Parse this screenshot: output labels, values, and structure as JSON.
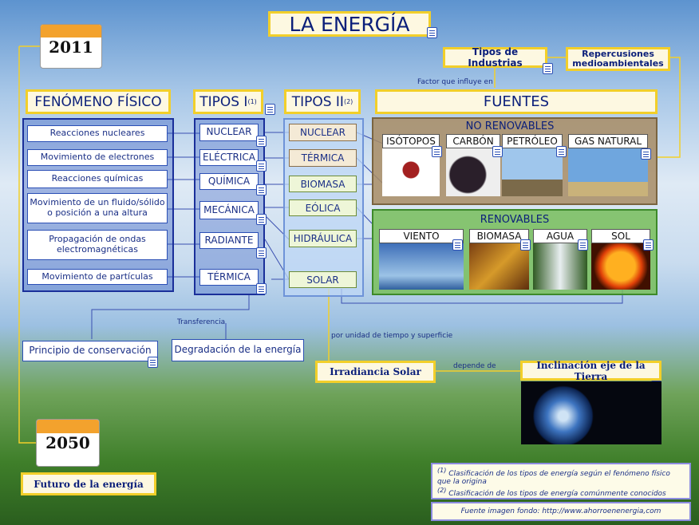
{
  "title": "LA ENERGÍA",
  "calendars": {
    "top": "2011",
    "bottom": "2050"
  },
  "future_label": "Futuro de la energía",
  "industries": "Tipos de Industrias",
  "repercussions": "Repercusiones medioambientales",
  "factor_label": "Factor que influye en",
  "headers": {
    "fenomeno": "FENÓMENO FÍSICO",
    "tipos1": "TIPOS I",
    "tipos1_sup": "(1)",
    "tipos2": "TIPOS II",
    "tipos2_sup": "(2)",
    "fuentes": "FUENTES"
  },
  "fenomenos": [
    "Reacciones nucleares",
    "Movimiento de electrones",
    "Reacciones químicas",
    "Movimiento de un fluido/sólido o posición a una altura",
    "Propagación de ondas electromagnéticas",
    "Movimiento de partículas"
  ],
  "tipos1": [
    "NUCLEAR",
    "ELÉCTRICA",
    "QUÍMICA",
    "MECÁNICA",
    "RADIANTE",
    "TÉRMICA"
  ],
  "tipos2": [
    "NUCLEAR",
    "TÉRMICA",
    "BIOMASA",
    "EÓLICA",
    "HIDRÁULICA",
    "SOLAR"
  ],
  "no_renovables": {
    "title": "NO RENOVABLES",
    "items": [
      "ISÓTOPOS",
      "CARBÓN",
      "PETRÓLEO",
      "GAS NATURAL"
    ]
  },
  "renovables": {
    "title": "RENOVABLES",
    "items": [
      "VIENTO",
      "BIOMASA",
      "AGUA",
      "SOL"
    ]
  },
  "transfer_label": "Transferencia",
  "conservacion": "Principio de conservación",
  "degradacion": "Degradación de la energía",
  "per_unit_label": "por unidad de tiempo y superficie",
  "irradiancia": "Irradiancia Solar",
  "depende_label": "depende de",
  "inclinacion": "Inclinación eje de la Tierra",
  "footnotes": {
    "n1_mark": "(1)",
    "n1": "Clasificación de los tipos de energía según el fenómeno físico que la origina",
    "n2_mark": "(2)",
    "n2": "Clasificación de los tipos de energía comúnmente conocidos",
    "source": "Fuente imagen fondo: http://www.ahorroenenergia,com"
  }
}
